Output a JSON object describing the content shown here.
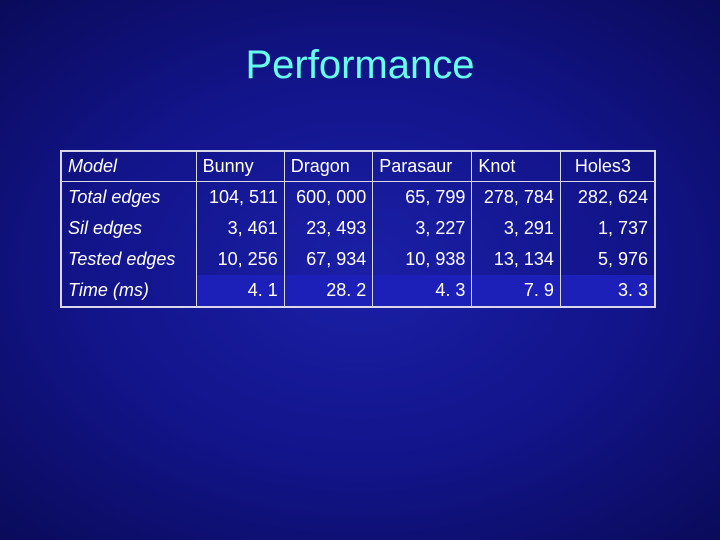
{
  "title": "Performance",
  "table": {
    "header": [
      "Model",
      "Bunny",
      "Dragon",
      "Parasaur",
      "Knot",
      "Holes3"
    ],
    "rows": [
      {
        "label": "Total edges",
        "values": [
          "104, 511",
          "600, 000",
          "65, 799",
          "278, 784",
          "282, 624"
        ]
      },
      {
        "label": "Sil edges",
        "values": [
          "3, 461",
          "23, 493",
          "3, 227",
          "3, 291",
          "1, 737"
        ]
      },
      {
        "label": "Tested edges",
        "values": [
          "10, 256",
          "67, 934",
          "10, 938",
          "13, 134",
          "5, 976"
        ]
      },
      {
        "label": "Time (ms)",
        "values": [
          "4. 1",
          "28. 2",
          "4. 3",
          "7. 9",
          "3. 3"
        ]
      }
    ]
  }
}
